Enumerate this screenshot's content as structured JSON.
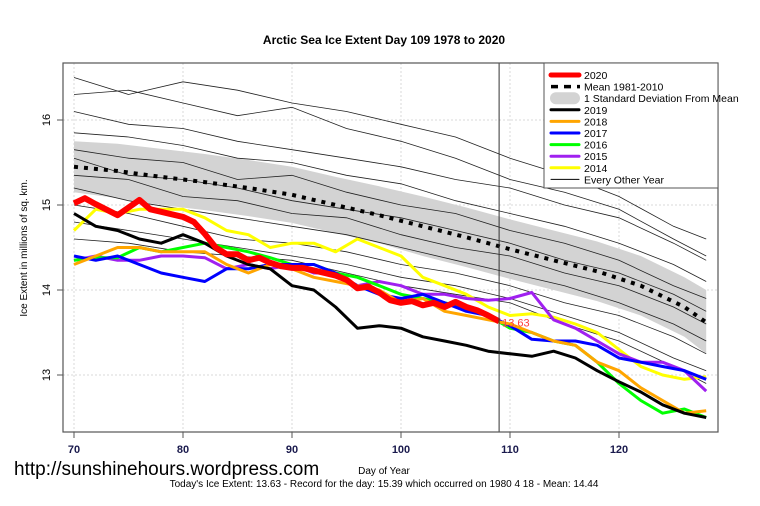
{
  "chart_data": {
    "type": "line",
    "title": "Arctic Sea Ice Extent Day 109 1978 to 2020",
    "xlabel": "Day of Year",
    "ylabel": "Ice Extent in millions of sq. km.",
    "xlim": [
      69,
      128.5
    ],
    "ylim": [
      12.35,
      16.6
    ],
    "x_ticks": [
      70,
      80,
      90,
      100,
      110,
      120
    ],
    "y_ticks": [
      13,
      14,
      15,
      16
    ],
    "grid": true,
    "current_day": 109,
    "today_value_label": "13.63",
    "legend_position": "top-right",
    "legend": [
      {
        "label": "2020",
        "color": "#ff0000",
        "style": "thick"
      },
      {
        "label": "Mean 1981-2010",
        "color": "#000000",
        "style": "dashed"
      },
      {
        "label": "1 Standard Deviation From Mean",
        "color": "#d3d3d3",
        "style": "band"
      },
      {
        "label": "2019",
        "color": "#000000",
        "style": "solid"
      },
      {
        "label": "2018",
        "color": "#ffa500",
        "style": "solid"
      },
      {
        "label": "2017",
        "color": "#0000ff",
        "style": "solid"
      },
      {
        "label": "2016",
        "color": "#00ff00",
        "style": "solid"
      },
      {
        "label": "2015",
        "color": "#a020f0",
        "style": "solid"
      },
      {
        "label": "2014",
        "color": "#ffff00",
        "style": "solid"
      },
      {
        "label": "Every Other Year",
        "color": "#000000",
        "style": "thin"
      }
    ],
    "mean": {
      "x": [
        70,
        74,
        78,
        82,
        86,
        90,
        94,
        98,
        102,
        106,
        110,
        114,
        118,
        122,
        126,
        128
      ],
      "values": [
        15.45,
        15.4,
        15.33,
        15.27,
        15.2,
        15.12,
        15.0,
        14.88,
        14.75,
        14.62,
        14.48,
        14.35,
        14.22,
        14.05,
        13.8,
        13.62
      ]
    },
    "std_band": {
      "x": [
        70,
        74,
        78,
        82,
        86,
        90,
        94,
        98,
        102,
        106,
        110,
        114,
        118,
        122,
        126,
        128
      ],
      "upper": [
        15.75,
        15.72,
        15.66,
        15.6,
        15.53,
        15.45,
        15.33,
        15.22,
        15.1,
        14.97,
        14.83,
        14.7,
        14.57,
        14.4,
        14.15,
        14.0
      ],
      "lower": [
        15.15,
        15.08,
        15.0,
        14.94,
        14.87,
        14.79,
        14.67,
        14.55,
        14.4,
        14.27,
        14.13,
        14.0,
        13.87,
        13.7,
        13.45,
        13.25
      ]
    },
    "series": [
      {
        "name": "Every Other Year",
        "color": "#000000",
        "kind": "thin",
        "x": [
          70,
          75,
          80,
          85,
          90,
          95,
          100,
          105,
          110,
          115,
          120,
          125,
          128
        ],
        "values": [
          16.5,
          16.3,
          16.45,
          16.35,
          16.2,
          16.1,
          15.95,
          15.8,
          15.55,
          15.35,
          15.1,
          14.75,
          14.6
        ]
      },
      {
        "name": "Every Other Year",
        "color": "#000000",
        "kind": "thin",
        "x": [
          70,
          75,
          80,
          85,
          90,
          95,
          100,
          105,
          110,
          115,
          120,
          125,
          128
        ],
        "values": [
          16.3,
          16.35,
          16.2,
          16.05,
          16.15,
          15.9,
          15.75,
          15.55,
          15.3,
          15.15,
          14.95,
          14.6,
          14.4
        ]
      },
      {
        "name": "Every Other Year",
        "color": "#000000",
        "kind": "thin",
        "x": [
          70,
          75,
          80,
          85,
          90,
          95,
          100,
          105,
          110,
          115,
          120,
          125,
          128
        ],
        "values": [
          16.1,
          15.95,
          15.9,
          15.75,
          15.65,
          15.55,
          15.45,
          15.3,
          15.2,
          15.0,
          14.85,
          14.55,
          14.35
        ]
      },
      {
        "name": "Every Other Year",
        "color": "#000000",
        "kind": "thin",
        "x": [
          70,
          75,
          80,
          85,
          90,
          95,
          100,
          105,
          110,
          115,
          120,
          125,
          128
        ],
        "values": [
          15.85,
          15.8,
          15.7,
          15.55,
          15.5,
          15.35,
          15.25,
          15.05,
          14.9,
          14.75,
          14.55,
          14.3,
          14.1
        ]
      },
      {
        "name": "Every Other Year",
        "color": "#000000",
        "kind": "thin",
        "x": [
          70,
          75,
          80,
          85,
          90,
          95,
          100,
          105,
          110,
          115,
          120,
          125,
          128
        ],
        "values": [
          15.65,
          15.55,
          15.5,
          15.3,
          15.35,
          15.15,
          15.0,
          14.9,
          14.7,
          14.55,
          14.35,
          14.05,
          13.9
        ]
      },
      {
        "name": "Every Other Year",
        "color": "#000000",
        "kind": "thin",
        "x": [
          70,
          75,
          80,
          85,
          90,
          95,
          100,
          105,
          110,
          115,
          120,
          125,
          128
        ],
        "values": [
          15.55,
          15.35,
          15.3,
          15.2,
          15.05,
          14.95,
          14.85,
          14.7,
          14.55,
          14.35,
          14.2,
          13.95,
          13.75
        ]
      },
      {
        "name": "Every Other Year",
        "color": "#000000",
        "kind": "thin",
        "x": [
          70,
          75,
          80,
          85,
          90,
          95,
          100,
          105,
          110,
          115,
          120,
          125,
          128
        ],
        "values": [
          15.35,
          15.3,
          15.1,
          15.05,
          14.9,
          14.85,
          14.65,
          14.5,
          14.4,
          14.2,
          14.05,
          13.8,
          13.6
        ]
      },
      {
        "name": "Every Other Year",
        "color": "#000000",
        "kind": "thin",
        "x": [
          70,
          75,
          80,
          85,
          90,
          95,
          100,
          105,
          110,
          115,
          120,
          125,
          128
        ],
        "values": [
          15.2,
          15.05,
          14.95,
          14.85,
          14.75,
          14.65,
          14.5,
          14.35,
          14.2,
          14.05,
          13.85,
          13.6,
          13.4
        ]
      },
      {
        "name": "Every Other Year",
        "color": "#000000",
        "kind": "thin",
        "x": [
          70,
          75,
          80,
          85,
          90,
          95,
          100,
          105,
          110,
          115,
          120,
          125,
          128
        ],
        "values": [
          15.0,
          14.9,
          14.75,
          14.6,
          14.55,
          14.45,
          14.3,
          14.2,
          14.05,
          13.85,
          13.7,
          13.45,
          13.25
        ]
      },
      {
        "name": "Every Other Year",
        "color": "#000000",
        "kind": "thin",
        "x": [
          70,
          75,
          80,
          85,
          90,
          95,
          100,
          105,
          110,
          115,
          120,
          125,
          128
        ],
        "values": [
          14.8,
          14.7,
          14.6,
          14.5,
          14.4,
          14.3,
          14.15,
          14.05,
          13.9,
          13.7,
          13.5,
          13.2,
          13.05
        ]
      },
      {
        "name": "Every Other Year",
        "color": "#000000",
        "kind": "thin",
        "x": [
          70,
          75,
          80,
          85,
          90,
          95,
          100,
          105,
          110,
          115,
          120,
          125,
          128
        ],
        "values": [
          14.6,
          14.55,
          14.45,
          14.4,
          14.35,
          14.2,
          14.05,
          13.95,
          13.85,
          13.6,
          13.4,
          13.1,
          12.9
        ]
      },
      {
        "name": "2014",
        "color": "#ffff00",
        "kind": "year",
        "x": [
          70,
          72,
          74,
          76,
          78,
          80,
          82,
          84,
          86,
          88,
          90,
          92,
          94,
          96,
          98,
          100,
          102,
          104,
          106,
          108,
          110,
          112,
          114,
          116,
          118,
          120,
          122,
          124,
          126,
          128
        ],
        "values": [
          14.7,
          14.95,
          14.9,
          14.95,
          14.95,
          14.95,
          14.85,
          14.7,
          14.65,
          14.5,
          14.55,
          14.55,
          14.45,
          14.6,
          14.5,
          14.4,
          14.15,
          14.05,
          13.95,
          13.8,
          13.7,
          13.72,
          13.68,
          13.6,
          13.5,
          13.3,
          13.1,
          13.0,
          12.95,
          12.98
        ]
      },
      {
        "name": "2015",
        "color": "#a020f0",
        "kind": "year",
        "x": [
          70,
          72,
          74,
          76,
          78,
          80,
          82,
          84,
          86,
          88,
          90,
          92,
          94,
          96,
          98,
          100,
          102,
          104,
          106,
          108,
          110,
          112,
          114,
          116,
          118,
          120,
          122,
          124,
          126,
          128
        ],
        "values": [
          14.35,
          14.4,
          14.35,
          14.35,
          14.4,
          14.4,
          14.38,
          14.25,
          14.3,
          14.25,
          14.3,
          14.2,
          14.2,
          14.05,
          14.1,
          14.05,
          13.95,
          13.95,
          13.9,
          13.88,
          13.9,
          13.97,
          13.65,
          13.55,
          13.4,
          13.25,
          13.15,
          13.15,
          13.05,
          12.81
        ]
      },
      {
        "name": "2016",
        "color": "#00ff00",
        "kind": "year",
        "x": [
          70,
          72,
          74,
          76,
          78,
          80,
          82,
          84,
          86,
          88,
          90,
          92,
          94,
          96,
          98,
          100,
          102,
          104,
          106,
          108,
          110,
          112,
          114,
          116,
          118,
          120,
          122,
          124,
          126,
          128
        ],
        "values": [
          14.35,
          14.38,
          14.38,
          14.5,
          14.45,
          14.5,
          14.55,
          14.5,
          14.45,
          14.38,
          14.3,
          14.3,
          14.2,
          14.15,
          14.05,
          13.95,
          13.9,
          13.85,
          13.8,
          13.7,
          13.55,
          13.5,
          13.4,
          13.35,
          13.15,
          12.9,
          12.7,
          12.55,
          12.6,
          12.5
        ]
      },
      {
        "name": "2017",
        "color": "#0000ff",
        "kind": "year",
        "x": [
          70,
          72,
          74,
          76,
          78,
          80,
          82,
          84,
          86,
          88,
          90,
          92,
          94,
          96,
          98,
          100,
          102,
          104,
          106,
          108,
          110,
          112,
          114,
          116,
          118,
          120,
          122,
          124,
          126,
          128
        ],
        "values": [
          14.4,
          14.35,
          14.4,
          14.3,
          14.2,
          14.15,
          14.1,
          14.25,
          14.25,
          14.3,
          14.3,
          14.3,
          14.2,
          14.05,
          13.95,
          13.9,
          13.95,
          13.85,
          13.75,
          13.7,
          13.58,
          13.42,
          13.4,
          13.4,
          13.35,
          13.2,
          13.15,
          13.1,
          13.05,
          12.95
        ]
      },
      {
        "name": "2018",
        "color": "#ffa500",
        "kind": "year",
        "x": [
          70,
          72,
          74,
          76,
          78,
          80,
          82,
          84,
          86,
          88,
          90,
          92,
          94,
          96,
          98,
          100,
          102,
          104,
          106,
          108,
          110,
          112,
          114,
          116,
          118,
          120,
          122,
          124,
          126,
          128
        ],
        "values": [
          14.3,
          14.4,
          14.5,
          14.5,
          14.45,
          14.45,
          14.45,
          14.3,
          14.2,
          14.3,
          14.25,
          14.15,
          14.1,
          14.05,
          14.0,
          13.85,
          13.9,
          13.75,
          13.7,
          13.65,
          13.6,
          13.5,
          13.4,
          13.35,
          13.15,
          13.05,
          12.85,
          12.7,
          12.55,
          12.58
        ]
      },
      {
        "name": "2019",
        "color": "#000000",
        "kind": "year",
        "x": [
          70,
          72,
          74,
          76,
          78,
          80,
          82,
          84,
          86,
          88,
          90,
          92,
          94,
          96,
          98,
          100,
          102,
          104,
          106,
          108,
          110,
          112,
          114,
          116,
          118,
          120,
          122,
          124,
          126,
          128
        ],
        "values": [
          14.9,
          14.75,
          14.7,
          14.6,
          14.55,
          14.65,
          14.55,
          14.4,
          14.3,
          14.25,
          14.05,
          14.0,
          13.8,
          13.55,
          13.58,
          13.55,
          13.45,
          13.4,
          13.35,
          13.28,
          13.25,
          13.22,
          13.28,
          13.2,
          13.05,
          12.92,
          12.8,
          12.65,
          12.55,
          12.5
        ]
      },
      {
        "name": "2020",
        "color": "#ff0000",
        "kind": "current",
        "x": [
          70,
          71,
          72,
          74,
          76,
          77,
          78,
          80,
          81,
          82,
          83,
          84,
          85,
          86,
          87,
          88,
          89,
          90,
          91,
          92,
          93,
          94,
          95,
          96,
          97,
          98,
          99,
          100,
          101,
          102,
          103,
          104,
          105,
          106,
          107,
          108,
          109
        ],
        "values": [
          15.02,
          15.08,
          15.01,
          14.88,
          15.06,
          14.95,
          14.92,
          14.86,
          14.8,
          14.66,
          14.5,
          14.42,
          14.42,
          14.35,
          14.38,
          14.32,
          14.28,
          14.26,
          14.26,
          14.23,
          14.2,
          14.17,
          14.12,
          14.02,
          14.04,
          13.97,
          13.88,
          13.85,
          13.87,
          13.82,
          13.85,
          13.8,
          13.86,
          13.8,
          13.76,
          13.7,
          13.63
        ]
      }
    ]
  },
  "footer": {
    "watermark": "http://sunshinehours.wordpress.com",
    "summary": "Today's Ice Extent: 13.63  - Record for the day: 15.39 which occurred on 1980 4 18  - Mean: 14.44"
  }
}
